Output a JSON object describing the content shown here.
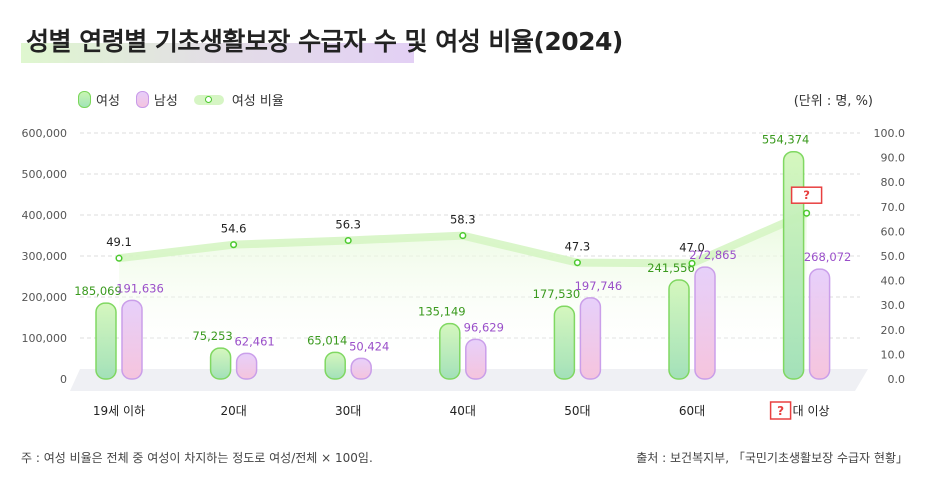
{
  "title": "성별 연령별 기초생활보장 수급자 수 및 여성 비율(2024)",
  "unit": "(단위 : 명, %)",
  "legend": {
    "female": "여성",
    "male": "남성",
    "ratio": "여성 비율"
  },
  "note": "주 : 여성 비율은 전체 중 여성이 차지하는 정도로 여성/전체 × 100임.",
  "source": "출처 : 보건복지부, 「국민기초생활보장 수급자 현황」",
  "colors": {
    "female": "#7ad65a",
    "male": "#c89ae9",
    "female_label": "#3a9a1e",
    "male_label": "#9a4fc9",
    "ratio_line": "#d6f5c4",
    "ratio_point": "#4cc92e",
    "missing_box": "#e84040"
  },
  "chart_data": {
    "type": "bar",
    "categories": [
      "19세 이하",
      "20대",
      "30대",
      "40대",
      "50대",
      "60대",
      "? 대 이상"
    ],
    "category_parts": {
      "last_prefix": "?",
      "last_suffix": "대 이상"
    },
    "series": [
      {
        "name": "여성",
        "type": "bar",
        "axis": "left",
        "values": [
          185069,
          75253,
          65014,
          135149,
          177530,
          241556,
          554374
        ],
        "labels": [
          "185,069",
          "75,253",
          "65,014",
          "135,149",
          "177,530",
          "241,556",
          "554,374"
        ]
      },
      {
        "name": "남성",
        "type": "bar",
        "axis": "left",
        "values": [
          191636,
          62461,
          50424,
          96629,
          197746,
          272865,
          268072
        ],
        "labels": [
          "191,636",
          "62,461",
          "50,424",
          "96,629",
          "197,746",
          "272,865",
          "268,072"
        ]
      },
      {
        "name": "여성 비율",
        "type": "line",
        "axis": "right",
        "values": [
          49.1,
          54.6,
          56.3,
          58.3,
          47.3,
          47.0,
          67.4
        ],
        "labels": [
          "49.1",
          "54.6",
          "56.3",
          "58.3",
          "47.3",
          "47.0",
          "?"
        ]
      }
    ],
    "y_left": {
      "range": [
        0,
        600000
      ],
      "ticks": [
        "0",
        "100,000",
        "200,000",
        "300,000",
        "400,000",
        "500,000",
        "600,000"
      ]
    },
    "y_right": {
      "range": [
        0,
        100
      ],
      "ticks": [
        "0.0",
        "10.0",
        "20.0",
        "30.0",
        "40.0",
        "50.0",
        "60.0",
        "70.0",
        "80.0",
        "90.0",
        "100.0"
      ]
    },
    "grid": true,
    "legend_position": "top-left"
  }
}
